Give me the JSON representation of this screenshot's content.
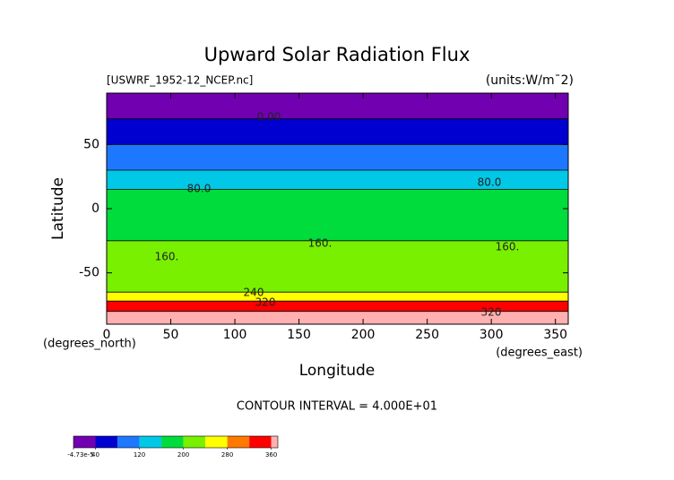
{
  "chart_data": {
    "type": "contour",
    "title": "Upward Solar Radiation Flux",
    "subtitle": "[USWRF_1952-12_NCEP.nc]",
    "units": "(units:W/m¯2)",
    "xlabel": "Longitude",
    "ylabel": "Latitude",
    "xunits": "(degrees_east)",
    "yunits": "(degrees_north)",
    "footnote": "CONTOUR INTERVAL = 4.000E+01",
    "xlim": [
      0,
      360
    ],
    "xticks": [
      0,
      50,
      100,
      150,
      200,
      250,
      300,
      350
    ],
    "ylim": [
      -90,
      90
    ],
    "yticks": [
      50,
      0,
      -50
    ],
    "lat_edges": [
      90,
      70,
      50,
      30,
      15,
      -25,
      -65,
      -72,
      -80,
      -90
    ],
    "values": [
      0,
      60,
      100,
      130,
      180,
      210,
      260,
      330,
      370
    ],
    "levels": [
      0,
      40,
      80,
      120,
      160,
      200,
      240,
      280,
      320,
      360
    ],
    "colors": [
      "#7000b0",
      "#0000d0",
      "#1e78ff",
      "#00c8e6",
      "#00dc3c",
      "#78f000",
      "#ffff00",
      "#ff7800",
      "#ff0000",
      "#ffb0b0"
    ],
    "clim": [
      0,
      372
    ],
    "cticks": [
      {
        "value": -4.73e-05,
        "label": "-4.73e-5"
      },
      40,
      120,
      200,
      280,
      360
    ],
    "annotations": [
      "0.00",
      "80.0",
      "80.0",
      "160.",
      "160.",
      "160.",
      "240",
      "320",
      "320"
    ]
  }
}
